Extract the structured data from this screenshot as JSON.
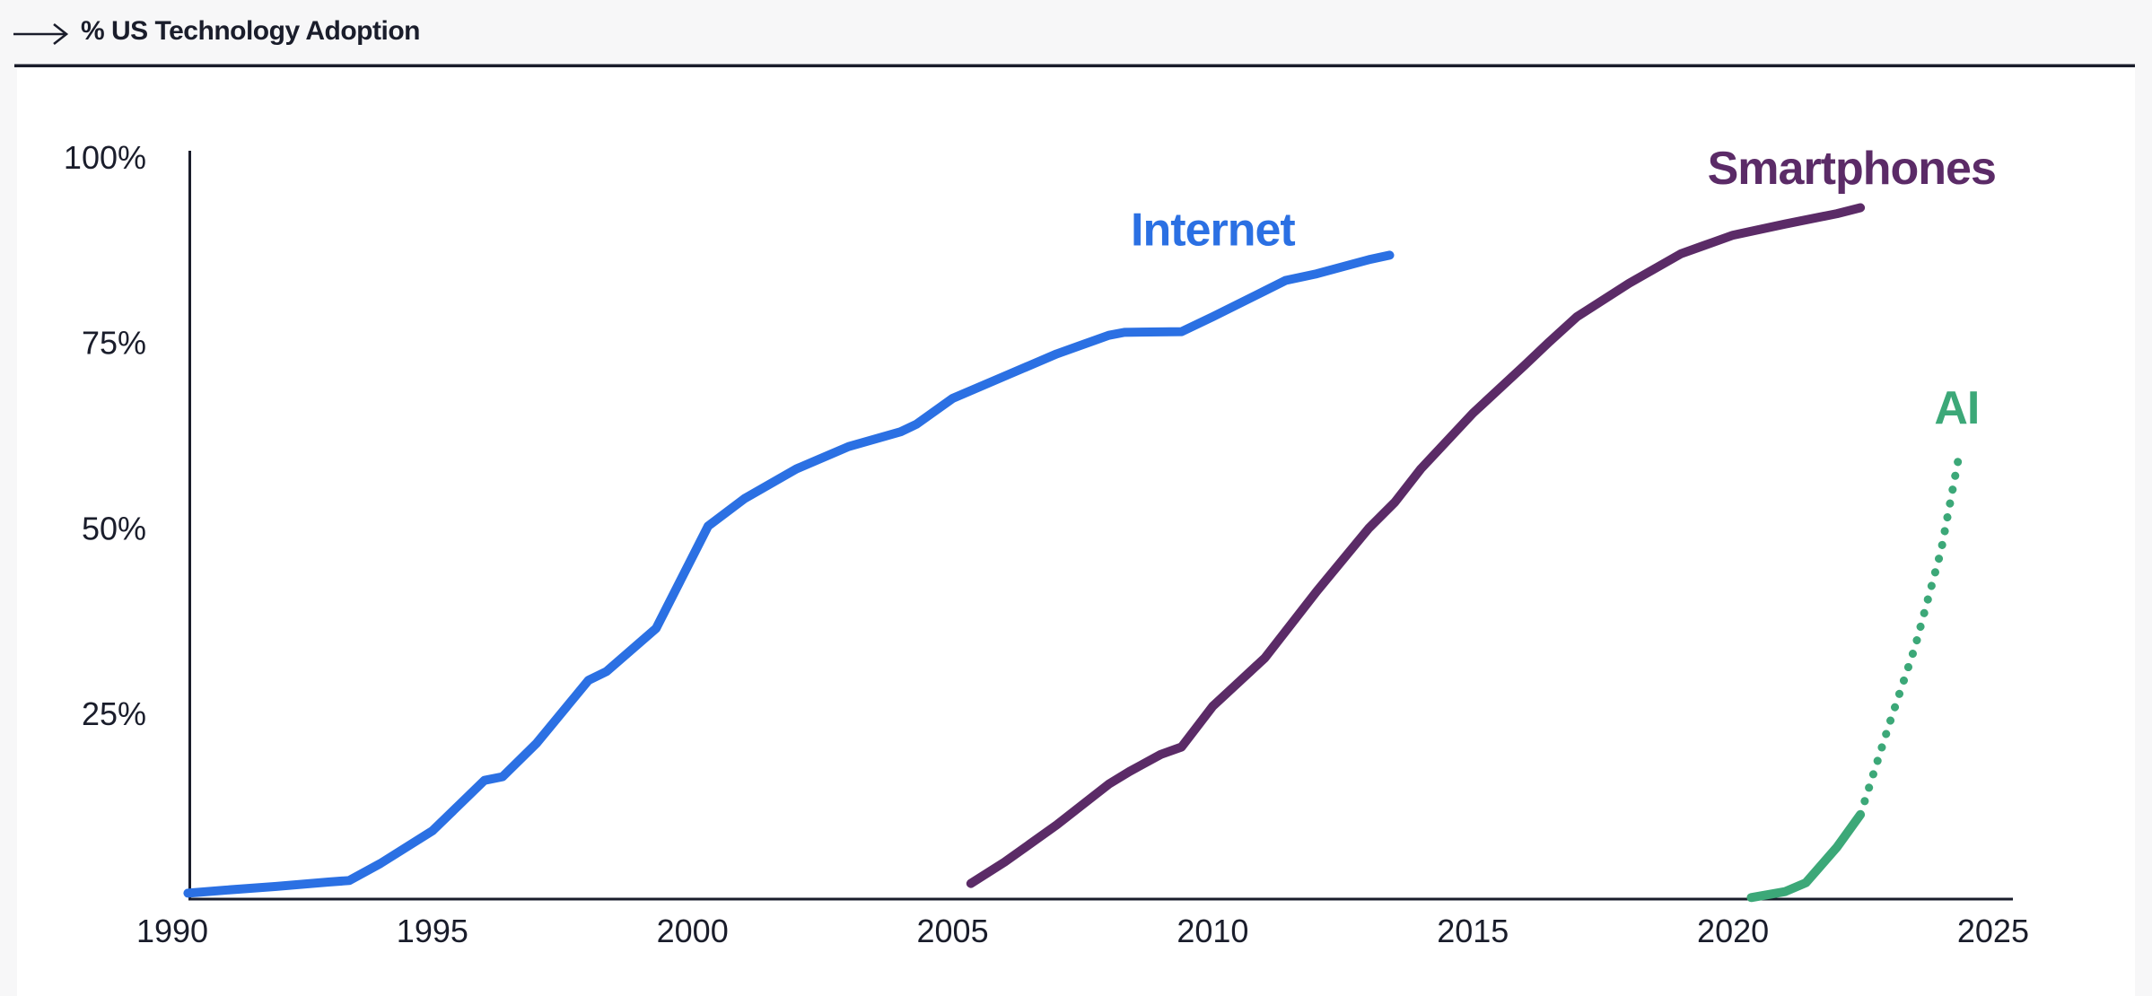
{
  "header": {
    "title": "% US Technology Adoption"
  },
  "colors": {
    "ink": "#1a1d2b",
    "page_bg": "#f7f7f8",
    "card_bg": "#ffffff",
    "internet": "#2b70e3",
    "smartphones": "#5b2b67",
    "ai": "#3ca878"
  },
  "chart_data": {
    "type": "line",
    "title": "% US Technology Adoption",
    "xlim": [
      1990,
      2025.4
    ],
    "ylim": [
      0,
      100
    ],
    "grid": false,
    "legend_position": "inline-labels",
    "x_ticks": [
      {
        "value": 1990,
        "label": "1990"
      },
      {
        "value": 1995,
        "label": "1995"
      },
      {
        "value": 2000,
        "label": "2000"
      },
      {
        "value": 2005,
        "label": "2005"
      },
      {
        "value": 2010,
        "label": "2010"
      },
      {
        "value": 2015,
        "label": "2015"
      },
      {
        "value": 2020,
        "label": "2020"
      },
      {
        "value": 2025,
        "label": "2025"
      }
    ],
    "y_ticks": [
      {
        "value": 100,
        "label": "100%"
      },
      {
        "value": 75,
        "label": "75%"
      },
      {
        "value": 50,
        "label": "50%"
      },
      {
        "value": 25,
        "label": "25%"
      }
    ],
    "series": [
      {
        "name": "Internet",
        "color_key": "internet",
        "style": "solid",
        "points": [
          [
            1990.3,
            0.8
          ],
          [
            1991,
            1.2
          ],
          [
            1992,
            1.7
          ],
          [
            1993,
            2.3
          ],
          [
            1993.4,
            2.5
          ],
          [
            1994,
            4.8
          ],
          [
            1995,
            9.2
          ],
          [
            1996,
            16
          ],
          [
            1996.35,
            16.5
          ],
          [
            1997,
            21
          ],
          [
            1998,
            29.5
          ],
          [
            1998.35,
            30.7
          ],
          [
            1999.3,
            36.5
          ],
          [
            2000.3,
            50.3
          ],
          [
            2001,
            54
          ],
          [
            2002,
            58
          ],
          [
            2003,
            61
          ],
          [
            2004,
            63
          ],
          [
            2004.3,
            64
          ],
          [
            2005,
            67.5
          ],
          [
            2006,
            70.5
          ],
          [
            2007,
            73.5
          ],
          [
            2008,
            76
          ],
          [
            2008.3,
            76.4
          ],
          [
            2009.4,
            76.5
          ],
          [
            2010,
            78.5
          ],
          [
            2011,
            82
          ],
          [
            2011.4,
            83.4
          ],
          [
            2012,
            84.3
          ],
          [
            2013,
            86.2
          ],
          [
            2013.4,
            86.8
          ]
        ]
      },
      {
        "name": "Smartphones",
        "color_key": "smartphones",
        "style": "solid",
        "points": [
          [
            2005.35,
            2.1
          ],
          [
            2006,
            5
          ],
          [
            2007,
            10
          ],
          [
            2008,
            15.5
          ],
          [
            2008.4,
            17.2
          ],
          [
            2009,
            19.5
          ],
          [
            2009.4,
            20.5
          ],
          [
            2010,
            26
          ],
          [
            2011,
            32.5
          ],
          [
            2012,
            41.5
          ],
          [
            2013,
            50
          ],
          [
            2013.5,
            53.5
          ],
          [
            2014,
            58
          ],
          [
            2015,
            65.5
          ],
          [
            2016,
            72
          ],
          [
            2016.45,
            75
          ],
          [
            2017,
            78.5
          ],
          [
            2018,
            83
          ],
          [
            2019,
            87
          ],
          [
            2019.4,
            88
          ],
          [
            2020,
            89.5
          ],
          [
            2021,
            91
          ],
          [
            2022,
            92.4
          ],
          [
            2022.45,
            93.2
          ]
        ]
      },
      {
        "name": "AI",
        "color_key": "ai",
        "style": "solid",
        "points": [
          [
            2020.35,
            0.2
          ],
          [
            2021,
            1
          ],
          [
            2021.4,
            2.2
          ],
          [
            2022,
            7
          ],
          [
            2022.45,
            11.4
          ]
        ]
      },
      {
        "name": "AI projection",
        "color_key": "ai",
        "style": "dotted",
        "points": [
          [
            2022.45,
            11.4
          ],
          [
            2023,
            23.5
          ],
          [
            2023.5,
            34
          ],
          [
            2024,
            47
          ],
          [
            2024.35,
            60
          ]
        ]
      }
    ],
    "series_labels": [
      {
        "text": "Internet",
        "x": 2010.0,
        "y": 90.4,
        "color_key": "internet"
      },
      {
        "text": "Smartphones",
        "x": 2022.28,
        "y": 98.7,
        "color_key": "smartphones"
      },
      {
        "text": "AI",
        "x": 2024.3,
        "y": 66.4,
        "color_key": "ai"
      }
    ]
  }
}
